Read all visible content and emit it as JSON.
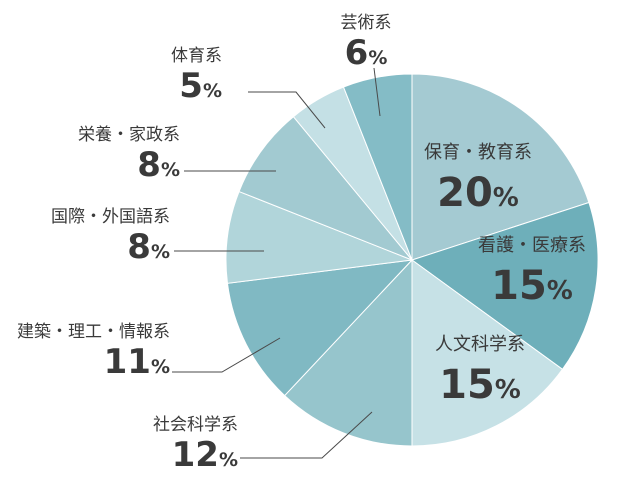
{
  "chart_data": {
    "type": "pie",
    "title": "",
    "unit": "%",
    "colors": [
      "#a4cad2",
      "#6eafba",
      "#c6e1e6",
      "#96c5cc",
      "#80b9c3",
      "#b1d5da",
      "#a2cad1",
      "#c4e0e5",
      "#84bcc6"
    ],
    "slices": [
      {
        "label": "保育・教育系",
        "value": 20
      },
      {
        "label": "看護・医療系",
        "value": 15
      },
      {
        "label": "人文科学系",
        "value": 15
      },
      {
        "label": "社会科学系",
        "value": 12
      },
      {
        "label": "建築・理工・情報系",
        "value": 11
      },
      {
        "label": "国際・外国語系",
        "value": 8
      },
      {
        "label": "栄養・家政系",
        "value": 8
      },
      {
        "label": "体育系",
        "value": 5
      },
      {
        "label": "芸術系",
        "value": 6
      }
    ]
  }
}
